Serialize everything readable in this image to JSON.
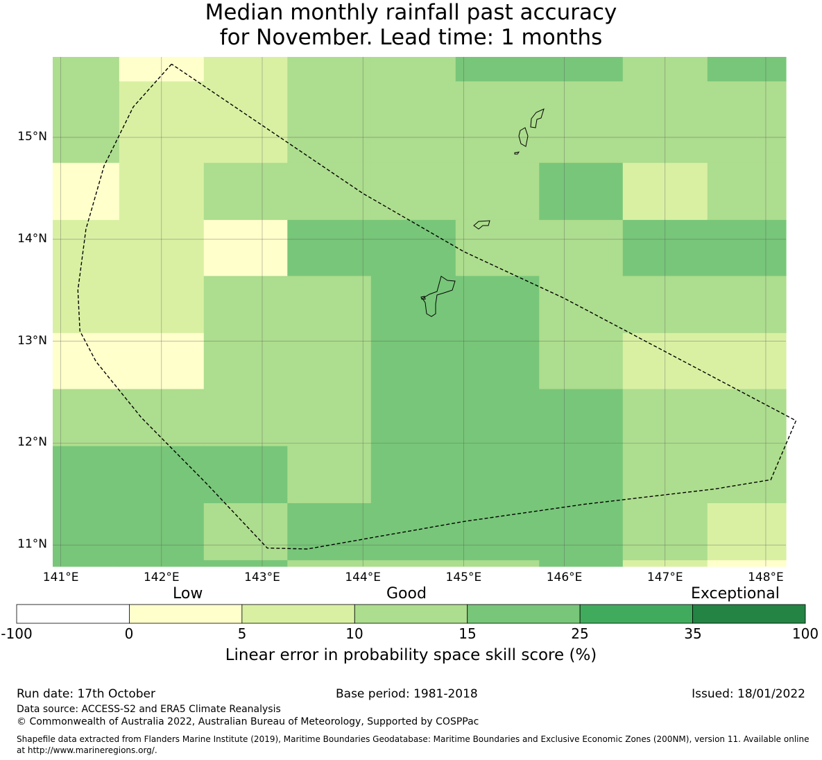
{
  "title": {
    "line1": "Median monthly rainfall past accuracy",
    "line2": "for November. Lead time: 1 months"
  },
  "map": {
    "lon_ticks": [
      "141°E",
      "142°E",
      "143°E",
      "144°E",
      "145°E",
      "146°E",
      "147°E",
      "148°E"
    ],
    "lat_ticks": [
      "15°N",
      "14°N",
      "13°N",
      "12°N",
      "11°N"
    ],
    "lon_values": [
      141,
      142,
      143,
      144,
      145,
      146,
      147,
      148
    ],
    "lat_values": [
      15,
      14,
      13,
      12,
      11
    ],
    "extent": {
      "lon_min": 140.92,
      "lon_max": 148.2,
      "lat_min": 10.79,
      "lat_max": 15.79
    },
    "grid_lon_edges": [
      140.92,
      141.58,
      142.42,
      143.25,
      144.08,
      144.92,
      145.75,
      146.58,
      147.42,
      148.2
    ],
    "grid_lat_edges": [
      15.79,
      15.55,
      14.75,
      14.19,
      13.64,
      13.08,
      12.53,
      11.97,
      11.41,
      10.85,
      10.79
    ],
    "cell_classes": [
      [
        3,
        1,
        2,
        3,
        3,
        4,
        4,
        3,
        4
      ],
      [
        3,
        2,
        2,
        3,
        3,
        3,
        3,
        3,
        3
      ],
      [
        1,
        2,
        3,
        3,
        3,
        3,
        4,
        2,
        3
      ],
      [
        2,
        2,
        1,
        4,
        4,
        3,
        3,
        4,
        4
      ],
      [
        2,
        2,
        3,
        3,
        4,
        4,
        3,
        3,
        3
      ],
      [
        1,
        1,
        3,
        3,
        4,
        4,
        3,
        2,
        2
      ],
      [
        3,
        3,
        3,
        3,
        4,
        4,
        4,
        3,
        3
      ],
      [
        4,
        4,
        4,
        3,
        4,
        4,
        4,
        3,
        3
      ],
      [
        4,
        4,
        3,
        4,
        4,
        4,
        4,
        3,
        2
      ],
      [
        4,
        4,
        4,
        3,
        3,
        3,
        4,
        2,
        1
      ]
    ],
    "eez_boundary": [
      [
        142.1,
        15.72
      ],
      [
        141.72,
        15.3
      ],
      [
        141.43,
        14.72
      ],
      [
        141.25,
        14.1
      ],
      [
        141.17,
        13.5
      ],
      [
        141.19,
        13.1
      ],
      [
        141.35,
        12.8
      ],
      [
        141.8,
        12.25
      ],
      [
        142.45,
        11.6
      ],
      [
        143.05,
        10.97
      ],
      [
        143.45,
        10.96
      ],
      [
        145.0,
        11.23
      ],
      [
        146.2,
        11.4
      ],
      [
        147.5,
        11.55
      ],
      [
        148.05,
        11.64
      ],
      [
        148.3,
        12.22
      ],
      [
        146.0,
        13.42
      ],
      [
        145.0,
        13.88
      ],
      [
        144.0,
        14.45
      ],
      [
        142.1,
        15.72
      ]
    ]
  },
  "legend": {
    "category_labels": {
      "low": "Low",
      "good": "Good",
      "exceptional": "Exceptional"
    },
    "tick_labels": [
      "-100",
      "0",
      "5",
      "10",
      "15",
      "25",
      "35",
      "100"
    ],
    "colors": [
      "#ffffff",
      "#ffffcc",
      "#d9f0a3",
      "#addd8e",
      "#78c679",
      "#41ab5d",
      "#238443"
    ],
    "axis_title": "Linear error in probability space skill score (%)"
  },
  "footer": {
    "run_date": "Run date: 17th October",
    "base_period": "Base period: 1981-2018",
    "issued": "Issued: 18/01/2022",
    "data_source": "Data source: ACCESS-S2 and ERA5 Climate Reanalysis",
    "copyright": "© Commonwealth of Australia 2022, Australian Bureau of Meteorology, Supported by COSPPac",
    "shapefile_line1": "Shapefile data extracted from Flanders Marine Institute (2019), Maritime Boundaries Geodatabase: Maritime Boundaries and Exclusive Economic Zones (200NM), version 11. Available online",
    "shapefile_line2": "at http://www.marineregions.org/."
  }
}
